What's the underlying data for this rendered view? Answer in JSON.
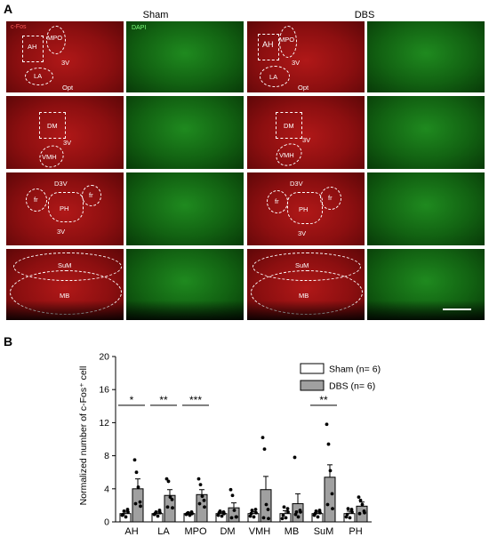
{
  "figure": {
    "panel_a_label": "A",
    "panel_b_label": "B",
    "group_sham": "Sham",
    "group_dbs": "DBS",
    "channel_cfos": "c-Fos",
    "channel_dapi": "DAPI",
    "regions": {
      "AH": "AH",
      "MPO": "MPO",
      "LA": "LA",
      "3V": "3V",
      "Opt": "Opt",
      "DM": "DM",
      "VMH": "VMH",
      "D3V": "D3V",
      "fr": "fr",
      "PH": "PH",
      "SuM": "SuM",
      "MB": "MB"
    },
    "colors": {
      "cfos": "#a01414",
      "dapi": "#1a7a1a",
      "bar_sham": "#ffffff",
      "bar_dbs": "#a0a0a0"
    }
  },
  "chart_data": {
    "type": "bar",
    "ylabel": "Normalized number of c-Fos⁺ cell",
    "ylim": [
      0,
      20
    ],
    "yticks": [
      0,
      4,
      8,
      12,
      16,
      20
    ],
    "categories": [
      "AH",
      "LA",
      "MPO",
      "DM",
      "VMH",
      "MB",
      "SuM",
      "PH"
    ],
    "legend_placement": "top-right",
    "series": [
      {
        "name": "Sham (n= 6)",
        "values": [
          1.0,
          1.0,
          1.0,
          1.0,
          1.0,
          1.0,
          1.0,
          1.0
        ],
        "sem": [
          0.3,
          0.2,
          0.15,
          0.2,
          0.25,
          0.35,
          0.2,
          0.3
        ]
      },
      {
        "name": "DBS (n= 6)",
        "values": [
          4.0,
          3.2,
          3.3,
          1.7,
          3.9,
          2.2,
          5.4,
          1.9
        ],
        "sem": [
          1.2,
          0.7,
          0.6,
          0.6,
          1.6,
          1.2,
          1.5,
          0.5
        ]
      }
    ],
    "points": {
      "sham": [
        [
          0.8,
          1.3,
          0.6,
          1.5,
          0.9,
          1.2
        ],
        [
          0.9,
          1.2,
          0.7,
          1.4,
          1.0,
          1.1
        ],
        [
          0.9,
          1.1,
          0.8,
          1.2,
          1.0,
          1.0
        ],
        [
          0.8,
          1.3,
          0.7,
          1.2,
          1.1,
          1.0
        ],
        [
          0.7,
          1.4,
          0.6,
          1.5,
          1.0,
          1.1
        ],
        [
          0.4,
          1.8,
          0.5,
          1.6,
          0.8,
          1.2
        ],
        [
          0.8,
          1.3,
          0.6,
          1.4,
          1.0,
          1.1
        ],
        [
          0.6,
          1.6,
          0.5,
          1.5,
          0.9,
          1.2
        ]
      ],
      "dbs": [
        [
          7.5,
          6.0,
          4.2,
          2.4,
          2.2,
          1.9
        ],
        [
          5.2,
          4.9,
          3.0,
          2.7,
          1.8,
          1.7
        ],
        [
          5.2,
          4.5,
          3.1,
          2.6,
          2.2,
          1.8
        ],
        [
          3.9,
          3.2,
          1.4,
          0.6,
          0.5,
          0.6
        ],
        [
          10.2,
          8.8,
          2.1,
          1.5,
          0.5,
          0.4
        ],
        [
          7.8,
          1.2,
          0.6,
          1.4,
          0.9,
          1.2
        ],
        [
          11.8,
          9.4,
          6.2,
          3.4,
          2.1,
          1.6
        ],
        [
          3.0,
          2.6,
          2.1,
          1.3,
          1.0,
          1.1
        ]
      ]
    },
    "significance": [
      {
        "category": "AH",
        "label": "*",
        "y": 14.1
      },
      {
        "category": "LA",
        "label": "**",
        "y": 14.1
      },
      {
        "category": "MPO",
        "label": "***",
        "y": 14.1
      },
      {
        "category": "SuM",
        "label": "**",
        "y": 14.1
      }
    ]
  }
}
